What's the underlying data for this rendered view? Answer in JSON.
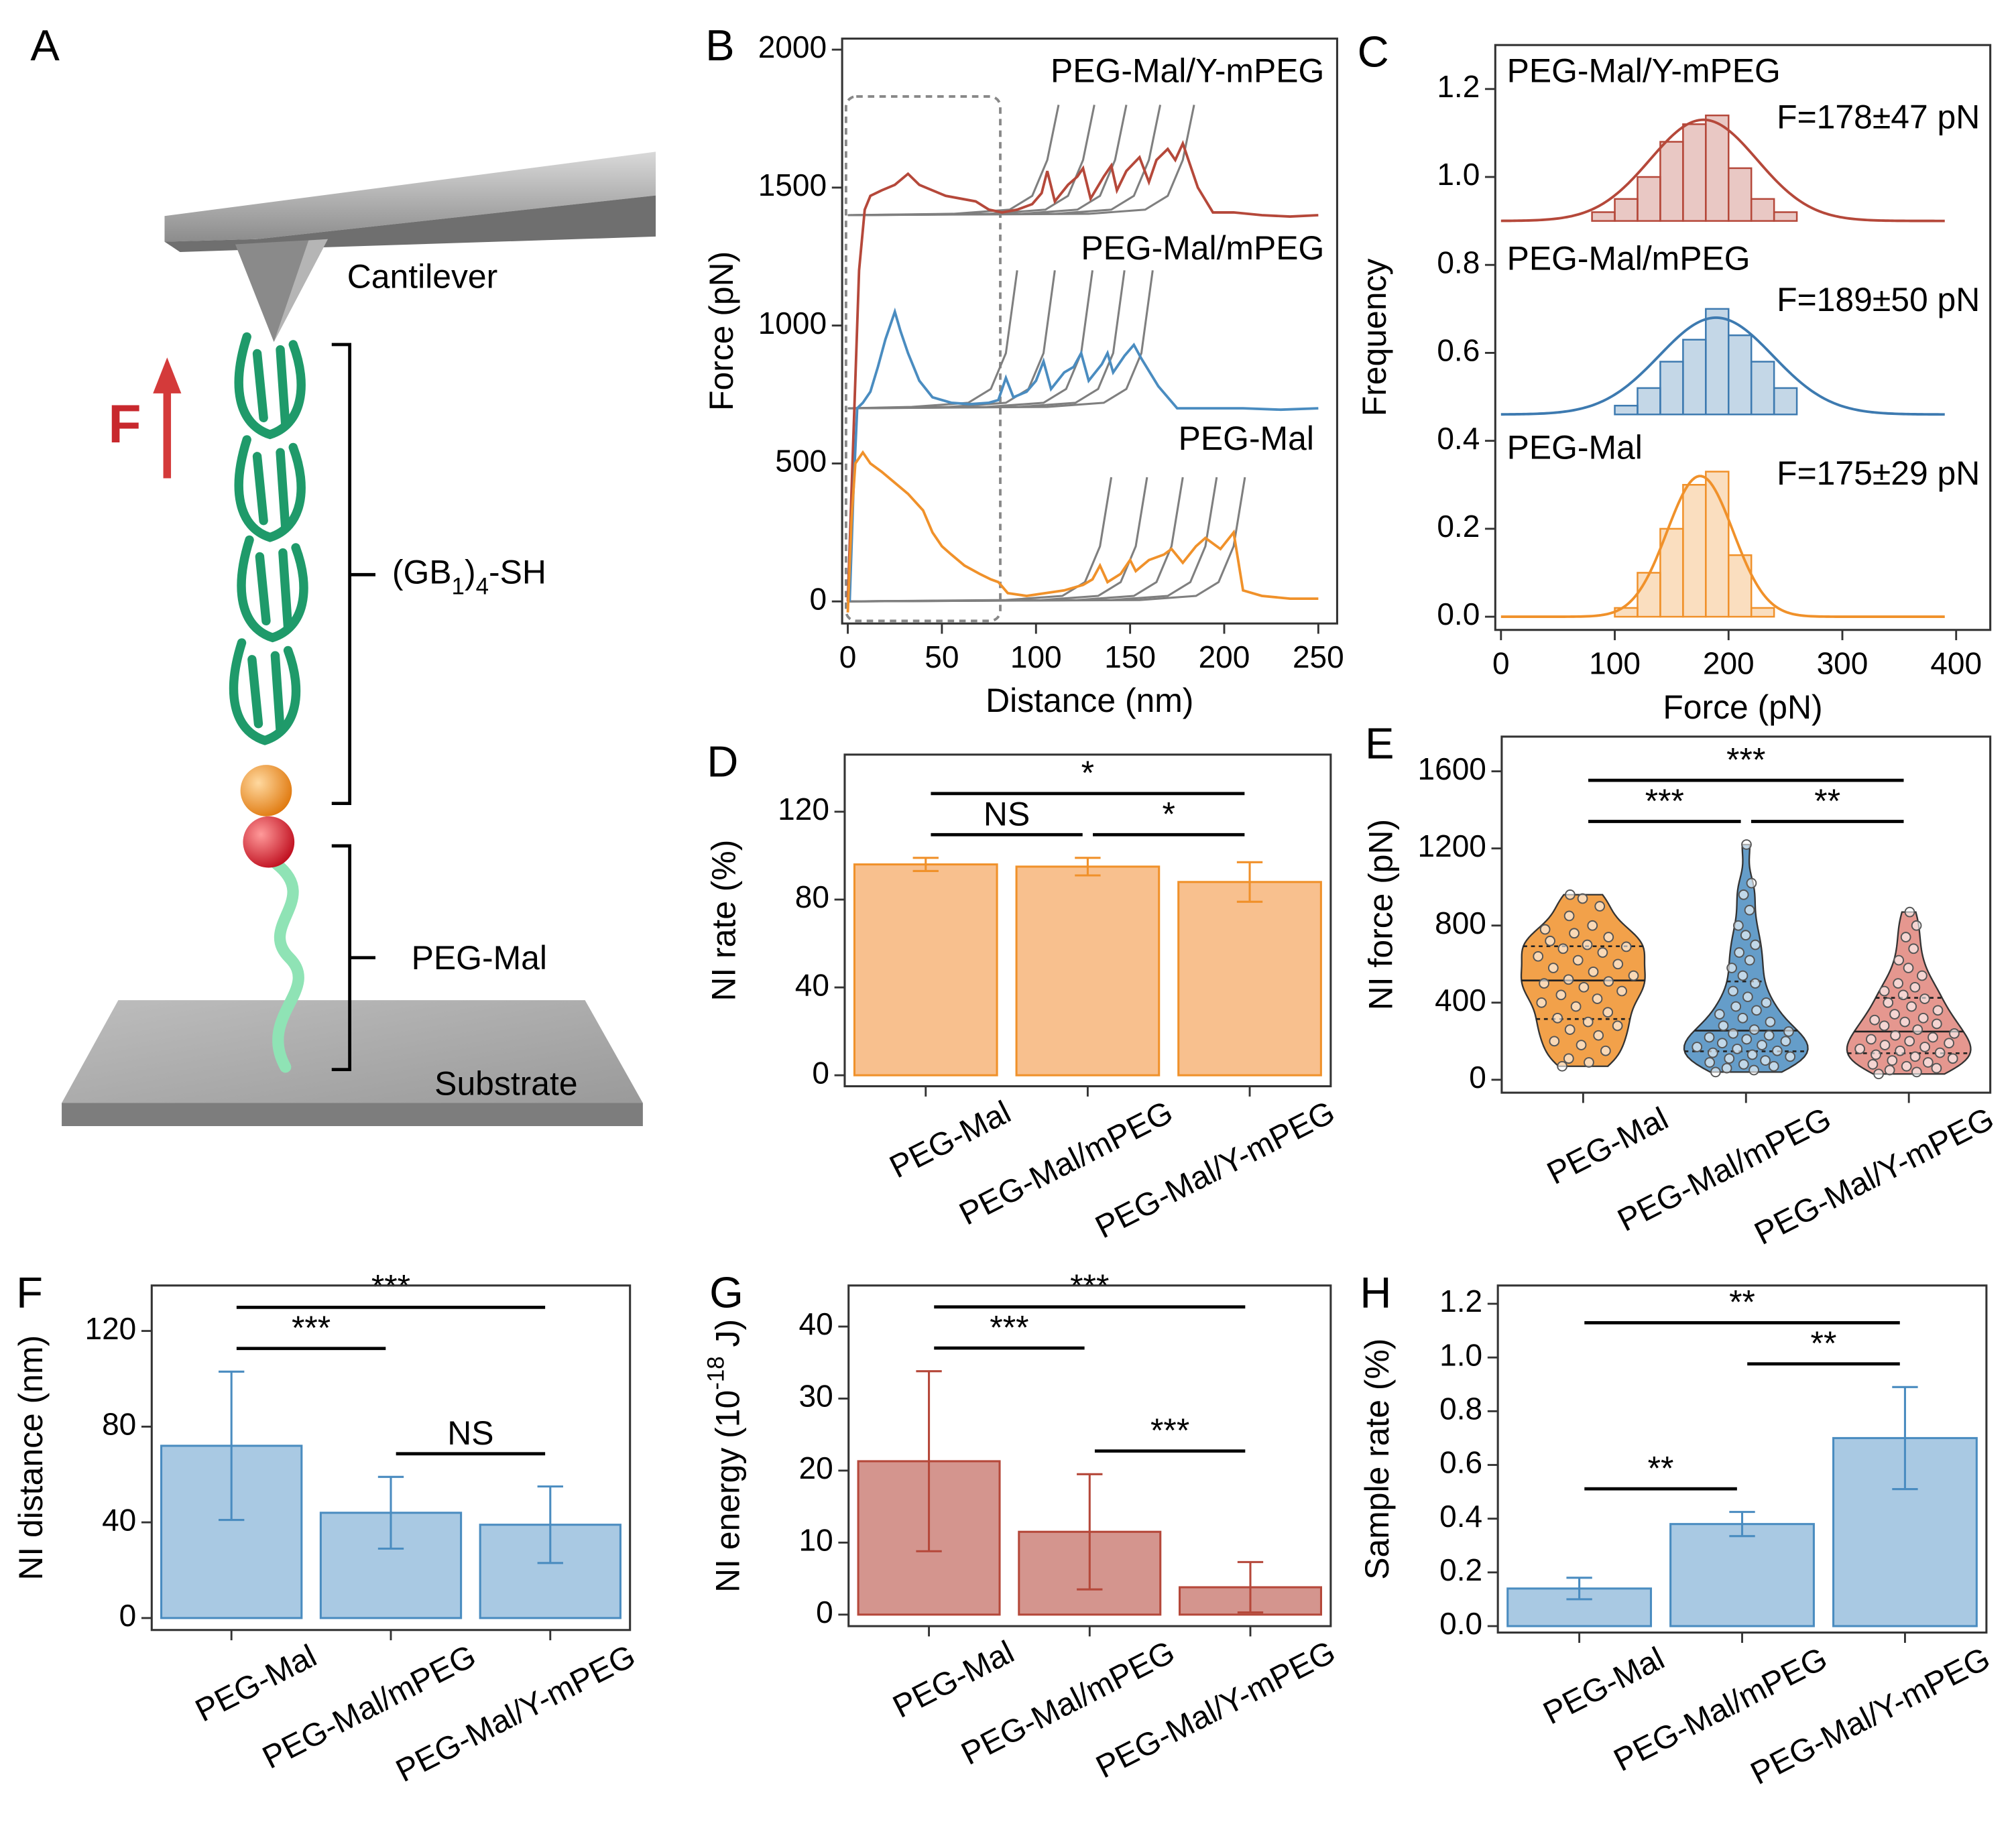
{
  "panel_a": {
    "panel": "A",
    "cantilever": "Cantilever",
    "force": "F",
    "gb": [
      "(GB",
      "1",
      ")",
      "4",
      "-SH"
    ],
    "peg": "PEG-Mal",
    "substrate": "Substrate"
  },
  "chart_data": [
    {
      "type": "line",
      "panel": "B",
      "x_label": "Distance (nm)",
      "y_label": "Force (pN)",
      "xlim": [
        -3,
        260
      ],
      "ylim": [
        -80,
        2040
      ],
      "xticks": [
        0,
        50,
        100,
        150,
        200,
        250
      ],
      "yticks": [
        0,
        500,
        1000,
        1500,
        2000
      ],
      "fit_color": "#7f7f7f",
      "series": [
        {
          "name": "PEG-Mal/Y-mPEG",
          "color": "#b5483a",
          "x": [
            0,
            3,
            6,
            9,
            12,
            18,
            25,
            32,
            38,
            45,
            52,
            60,
            68,
            75,
            82,
            90,
            98,
            103,
            106,
            110,
            117,
            122,
            125,
            129,
            136,
            140,
            143,
            148,
            155,
            160,
            164,
            170,
            174,
            178,
            186,
            194,
            205,
            220,
            235,
            250
          ],
          "values": [
            0,
            600,
            1200,
            1420,
            1470,
            1490,
            1510,
            1550,
            1510,
            1490,
            1470,
            1460,
            1450,
            1420,
            1410,
            1420,
            1440,
            1480,
            1560,
            1450,
            1510,
            1540,
            1570,
            1460,
            1540,
            1580,
            1490,
            1560,
            1610,
            1520,
            1600,
            1640,
            1600,
            1660,
            1500,
            1410,
            1410,
            1400,
            1395,
            1400
          ]
        },
        {
          "name": "PEG-Mal/mPEG",
          "color": "#4a8cc0",
          "x": [
            1,
            3,
            5,
            8,
            12,
            16,
            20,
            25,
            28,
            32,
            38,
            45,
            55,
            65,
            75,
            80,
            84,
            88,
            95,
            100,
            104,
            108,
            115,
            120,
            124,
            128,
            135,
            138,
            141,
            147,
            152,
            156,
            165,
            175,
            190,
            210,
            230,
            250
          ],
          "values": [
            0,
            400,
            700,
            720,
            760,
            850,
            950,
            1050,
            980,
            900,
            800,
            740,
            720,
            715,
            720,
            730,
            810,
            740,
            760,
            800,
            870,
            770,
            830,
            850,
            900,
            800,
            860,
            900,
            830,
            890,
            930,
            880,
            780,
            700,
            700,
            700,
            695,
            700
          ]
        },
        {
          "name": "PEG-Mal",
          "color": "#f0912a",
          "x": [
            0,
            2,
            4,
            8,
            12,
            18,
            25,
            32,
            40,
            45,
            50,
            55,
            62,
            70,
            76,
            80,
            85,
            95,
            105,
            115,
            125,
            130,
            134,
            138,
            145,
            150,
            153,
            160,
            168,
            172,
            178,
            185,
            190,
            198,
            205,
            210,
            220,
            235,
            250
          ],
          "values": [
            -40,
            300,
            500,
            540,
            500,
            470,
            430,
            390,
            330,
            250,
            200,
            170,
            130,
            100,
            80,
            70,
            30,
            20,
            30,
            40,
            60,
            80,
            130,
            70,
            100,
            150,
            110,
            150,
            170,
            190,
            140,
            200,
            230,
            190,
            250,
            40,
            20,
            10,
            10
          ]
        }
      ],
      "fits": [
        {
          "x": [
            0,
            56,
            86,
            98,
            106,
            112
          ],
          "values": [
            1400,
            1405,
            1420,
            1470,
            1600,
            1800
          ]
        },
        {
          "x": [
            0,
            75,
            105,
            117,
            125,
            131
          ],
          "values": [
            1400,
            1405,
            1420,
            1470,
            1600,
            1800
          ]
        },
        {
          "x": [
            0,
            92,
            122,
            134,
            142,
            148
          ],
          "values": [
            1400,
            1405,
            1420,
            1470,
            1600,
            1800
          ]
        },
        {
          "x": [
            0,
            110,
            140,
            152,
            160,
            166
          ],
          "values": [
            1400,
            1405,
            1420,
            1470,
            1600,
            1800
          ]
        },
        {
          "x": [
            0,
            128,
            158,
            170,
            178,
            184
          ],
          "values": [
            1400,
            1405,
            1420,
            1470,
            1600,
            1800
          ]
        },
        {
          "x": [
            0,
            34,
            64,
            76,
            84,
            90
          ],
          "values": [
            700,
            705,
            720,
            770,
            900,
            1200
          ]
        },
        {
          "x": [
            0,
            54,
            84,
            96,
            104,
            110
          ],
          "values": [
            700,
            705,
            720,
            770,
            900,
            1200
          ]
        },
        {
          "x": [
            0,
            74,
            104,
            116,
            124,
            130
          ],
          "values": [
            700,
            705,
            720,
            770,
            900,
            1200
          ]
        },
        {
          "x": [
            0,
            91,
            121,
            133,
            141,
            147
          ],
          "values": [
            700,
            705,
            720,
            770,
            900,
            1200
          ]
        },
        {
          "x": [
            0,
            106,
            136,
            148,
            156,
            162
          ],
          "values": [
            700,
            705,
            720,
            770,
            900,
            1200
          ]
        },
        {
          "x": [
            0,
            84,
            114,
            126,
            134,
            140
          ],
          "values": [
            0,
            5,
            20,
            70,
            200,
            450
          ]
        },
        {
          "x": [
            0,
            103,
            133,
            145,
            153,
            159
          ],
          "values": [
            0,
            5,
            20,
            70,
            200,
            450
          ]
        },
        {
          "x": [
            0,
            122,
            152,
            164,
            172,
            178
          ],
          "values": [
            0,
            5,
            20,
            70,
            200,
            450
          ]
        },
        {
          "x": [
            0,
            140,
            170,
            182,
            190,
            196
          ],
          "values": [
            0,
            5,
            20,
            70,
            200,
            450
          ]
        },
        {
          "x": [
            0,
            155,
            185,
            197,
            205,
            211
          ],
          "values": [
            0,
            5,
            20,
            70,
            200,
            450
          ]
        }
      ]
    },
    {
      "type": "histogram",
      "panel": "C",
      "x_label": "Force (pN)",
      "y_label": "Frequency",
      "xlim": [
        -5,
        430
      ],
      "ylim": [
        -0.03,
        1.3
      ],
      "xticks": [
        0,
        100,
        200,
        300,
        400
      ],
      "yticks": [
        {
          "value": 0,
          "label": "0.0"
        },
        0.2,
        0.4,
        0.6,
        0.8,
        {
          "value": 1,
          "label": "1.0"
        },
        1.2
      ],
      "series": [
        {
          "name": "PEG-Mal/Y-mPEG",
          "label": "F=178±47 pN",
          "color": "#b5483a",
          "offset": 0.9,
          "bins": [
            80,
            100,
            120,
            140,
            160,
            180,
            200,
            220,
            240,
            260
          ],
          "values": [
            0.02,
            0.05,
            0.1,
            0.18,
            0.22,
            0.24,
            0.12,
            0.05,
            0.02
          ],
          "fit": {
            "mean": 178,
            "sd": 47,
            "peak": 0.23,
            "range": [
              0,
              390
            ]
          }
        },
        {
          "name": "PEG-Mal/mPEG",
          "label": "F=189±50 pN",
          "color": "#3d7ab0",
          "offset": 0.46,
          "bins": [
            100,
            120,
            140,
            160,
            180,
            200,
            220,
            240,
            260
          ],
          "values": [
            0.02,
            0.06,
            0.12,
            0.17,
            0.24,
            0.18,
            0.12,
            0.06
          ],
          "fit": {
            "mean": 189,
            "sd": 50,
            "peak": 0.22,
            "range": [
              0,
              390
            ]
          }
        },
        {
          "name": "PEG-Mal",
          "label": "F=175±29 pN",
          "color": "#f0912a",
          "offset": 0,
          "bins": [
            100,
            120,
            140,
            160,
            180,
            200,
            220,
            240
          ],
          "values": [
            0.02,
            0.1,
            0.2,
            0.3,
            0.33,
            0.14,
            0.02
          ],
          "fit": {
            "mean": 175,
            "sd": 29,
            "peak": 0.32,
            "range": [
              0,
              390
            ]
          }
        }
      ]
    },
    {
      "type": "bar",
      "panel": "D",
      "y_label": "NI rate (%)",
      "ylim": [
        -5,
        146
      ],
      "yticks": [
        0,
        40,
        80,
        120
      ],
      "categories": [
        "PEG-Mal",
        "PEG-Mal/mPEG",
        "PEG-Mal/Y-mPEG"
      ],
      "values": [
        96,
        95,
        88
      ],
      "errors": [
        3,
        4,
        9
      ],
      "fill": "#f8c08e",
      "color": "#f0912a",
      "significance": [
        {
          "pair": [
            0,
            1
          ],
          "label": "NS"
        },
        {
          "pair": [
            1,
            2
          ],
          "label": "*"
        },
        {
          "pair": [
            0,
            2
          ],
          "label": "*"
        }
      ]
    },
    {
      "type": "violin",
      "panel": "E",
      "y_label": "NI force (pN)",
      "ylim": [
        -67,
        1780
      ],
      "yticks": [
        0,
        400,
        800,
        1200,
        1600
      ],
      "categories": [
        "PEG-Mal",
        "PEG-Mal/mPEG",
        "PEG-Mal/Y-mPEG"
      ],
      "groups": [
        {
          "color": "#f0912a",
          "values": [
            70,
            90,
            110,
            150,
            180,
            200,
            230,
            260,
            280,
            300,
            320,
            350,
            380,
            400,
            420,
            440,
            460,
            480,
            500,
            510,
            520,
            540,
            560,
            580,
            600,
            620,
            640,
            660,
            680,
            690,
            700,
            720,
            740,
            760,
            780,
            800,
            850,
            900,
            940,
            960
          ]
        },
        {
          "color": "#4a8cc0",
          "values": [
            40,
            50,
            60,
            70,
            80,
            90,
            100,
            110,
            120,
            130,
            140,
            150,
            160,
            170,
            180,
            190,
            200,
            210,
            220,
            230,
            240,
            250,
            260,
            280,
            300,
            320,
            340,
            360,
            380,
            400,
            430,
            460,
            500,
            540,
            580,
            620,
            660,
            700,
            750,
            800,
            880,
            960,
            1020,
            1220
          ]
        },
        {
          "color": "#e0857b",
          "values": [
            30,
            40,
            50,
            60,
            70,
            80,
            90,
            100,
            110,
            120,
            130,
            140,
            150,
            160,
            170,
            180,
            190,
            200,
            210,
            220,
            230,
            240,
            260,
            280,
            290,
            300,
            310,
            320,
            340,
            360,
            380,
            400,
            420,
            440,
            460,
            480,
            500,
            540,
            580,
            620,
            680,
            740,
            800,
            870
          ]
        }
      ],
      "significance": [
        {
          "pair": [
            0,
            1
          ],
          "label": "***"
        },
        {
          "pair": [
            1,
            2
          ],
          "label": "**"
        },
        {
          "pair": [
            0,
            2
          ],
          "label": "***"
        }
      ]
    },
    {
      "type": "bar",
      "panel": "F",
      "y_label": "NI distance (nm)",
      "ylim": [
        -5,
        139
      ],
      "yticks": [
        0,
        40,
        80,
        120
      ],
      "categories": [
        "PEG-Mal",
        "PEG-Mal/mPEG",
        "PEG-Mal/Y-mPEG"
      ],
      "values": [
        72,
        44,
        39
      ],
      "errors": [
        31,
        15,
        16
      ],
      "fill": "#a9c9e3",
      "color": "#4a8cc0",
      "significance": [
        {
          "pair": [
            0,
            1
          ],
          "label": "***"
        },
        {
          "pair": [
            1,
            2
          ],
          "label": "NS"
        },
        {
          "pair": [
            0,
            2
          ],
          "label": "***"
        }
      ]
    },
    {
      "type": "bar",
      "panel": "G",
      "y_label": [
        "NI energy (10",
        "-18",
        " J)"
      ],
      "ylim": [
        -1.6,
        45.7
      ],
      "yticks": [
        0,
        10,
        20,
        30,
        40
      ],
      "categories": [
        "PEG-Mal",
        "PEG-Mal/mPEG",
        "PEG-Mal/Y-mPEG"
      ],
      "values": [
        21.3,
        11.5,
        3.8
      ],
      "errors": [
        12.5,
        8,
        3.5
      ],
      "fill": "#d4958e",
      "color": "#b5483a",
      "significance": [
        {
          "pair": [
            0,
            1
          ],
          "label": "***"
        },
        {
          "pair": [
            1,
            2
          ],
          "label": "***"
        },
        {
          "pair": [
            0,
            2
          ],
          "label": "***"
        }
      ]
    },
    {
      "type": "bar",
      "panel": "H",
      "y_label": "Sample rate (%)",
      "ylim": [
        -0.024,
        1.268
      ],
      "yticks": [
        {
          "value": 0,
          "label": "0.0"
        },
        0.2,
        0.4,
        0.6,
        0.8,
        {
          "value": 1,
          "label": "1.0"
        },
        1.2
      ],
      "categories": [
        "PEG-Mal",
        "PEG-Mal/mPEG",
        "PEG-Mal/Y-mPEG"
      ],
      "values": [
        0.14,
        0.38,
        0.7
      ],
      "errors": [
        0.04,
        0.045,
        0.19
      ],
      "fill": "#a9c9e3",
      "color": "#4a8cc0",
      "significance": [
        {
          "pair": [
            0,
            1
          ],
          "label": "**"
        },
        {
          "pair": [
            1,
            2
          ],
          "label": "**"
        },
        {
          "pair": [
            0,
            2
          ],
          "label": "**"
        }
      ]
    }
  ]
}
